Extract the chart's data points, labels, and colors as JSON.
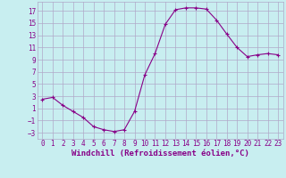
{
  "x": [
    0,
    1,
    2,
    3,
    4,
    5,
    6,
    7,
    8,
    9,
    10,
    11,
    12,
    13,
    14,
    15,
    16,
    17,
    18,
    19,
    20,
    21,
    22,
    23
  ],
  "y": [
    2.5,
    2.8,
    1.5,
    0.5,
    -0.5,
    -2.0,
    -2.5,
    -2.8,
    -2.5,
    0.5,
    6.5,
    10.0,
    14.8,
    17.2,
    17.5,
    17.5,
    17.3,
    15.5,
    13.2,
    11.0,
    9.5,
    9.8,
    10.0,
    9.8
  ],
  "xlabel": "Windchill (Refroidissement éolien,°C)",
  "ylim": [
    -4,
    18.5
  ],
  "yticks": [
    -3,
    -1,
    1,
    3,
    5,
    7,
    9,
    11,
    13,
    15,
    17
  ],
  "xticks": [
    0,
    1,
    2,
    3,
    4,
    5,
    6,
    7,
    8,
    9,
    10,
    11,
    12,
    13,
    14,
    15,
    16,
    17,
    18,
    19,
    20,
    21,
    22,
    23
  ],
  "line_color": "#880088",
  "marker": "+",
  "bg_color": "#c8eef0",
  "grid_color": "#b0a8c8",
  "text_color": "#880088",
  "xlabel_fontsize": 6.5,
  "tick_fontsize": 5.5,
  "xlim": [
    -0.5,
    23.5
  ]
}
